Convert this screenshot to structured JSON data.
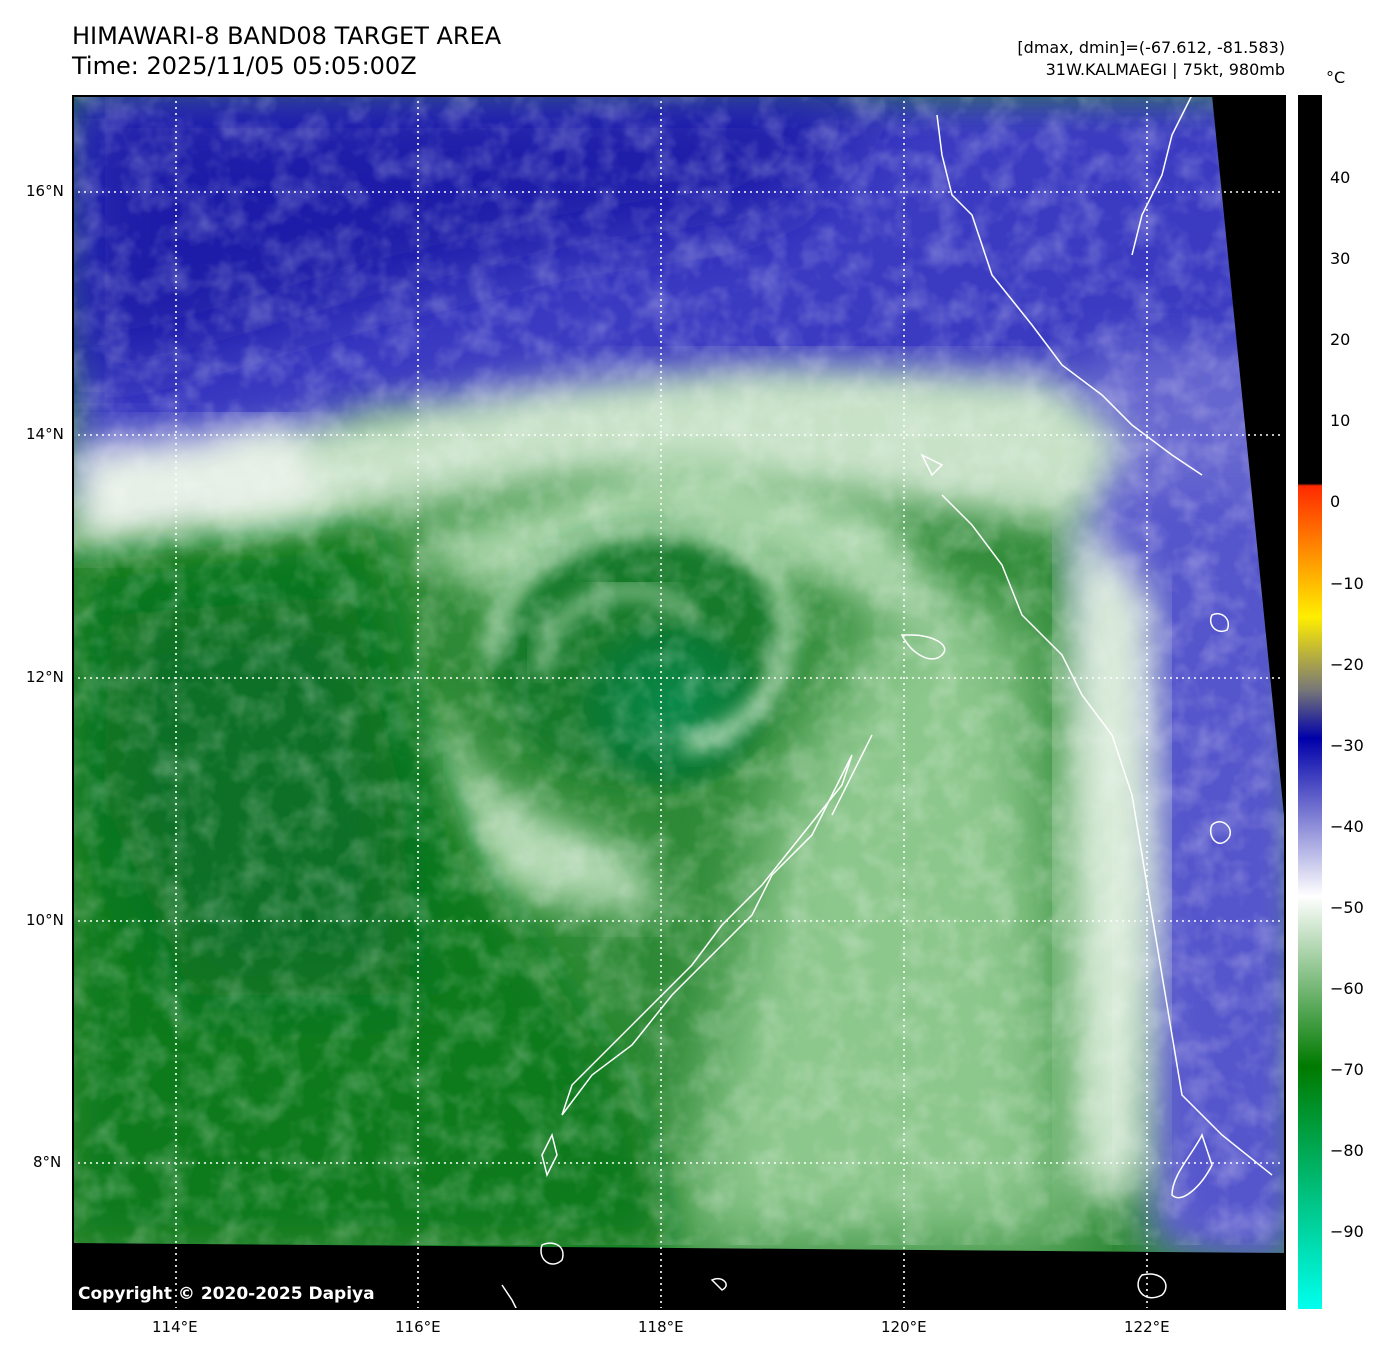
{
  "title": {
    "line1": "HIMAWARI-8 BAND08 TARGET AREA",
    "line2": "Time: 2025/11/05 05:05:00Z"
  },
  "info": {
    "line1": "[dmax, dmin]=(-67.612, -81.583)",
    "line2": "31W.KALMAEGI | 75kt, 980mb"
  },
  "axes": {
    "lat_ticks": [
      "16°N",
      "14°N",
      "12°N",
      "10°N",
      "8°N"
    ],
    "lon_ticks": [
      "114°E",
      "116°E",
      "118°E",
      "120°E",
      "122°E"
    ]
  },
  "colorbar": {
    "unit": "°C",
    "labels": [
      "40",
      "30",
      "20",
      "10",
      "0",
      "−10",
      "−20",
      "−30",
      "−40",
      "−50",
      "−60",
      "−70",
      "−80",
      "−90"
    ],
    "colors": {
      "warm": "#000000",
      "red": "#ff2a00",
      "yellow": "#ffee00",
      "gray": "#777777",
      "blue": "#0000aa",
      "white": "#ffffff",
      "green": "#007a00",
      "cyan": "#00ffee"
    }
  },
  "copyright": "Copyright © 2020-2025 Dapiya"
}
